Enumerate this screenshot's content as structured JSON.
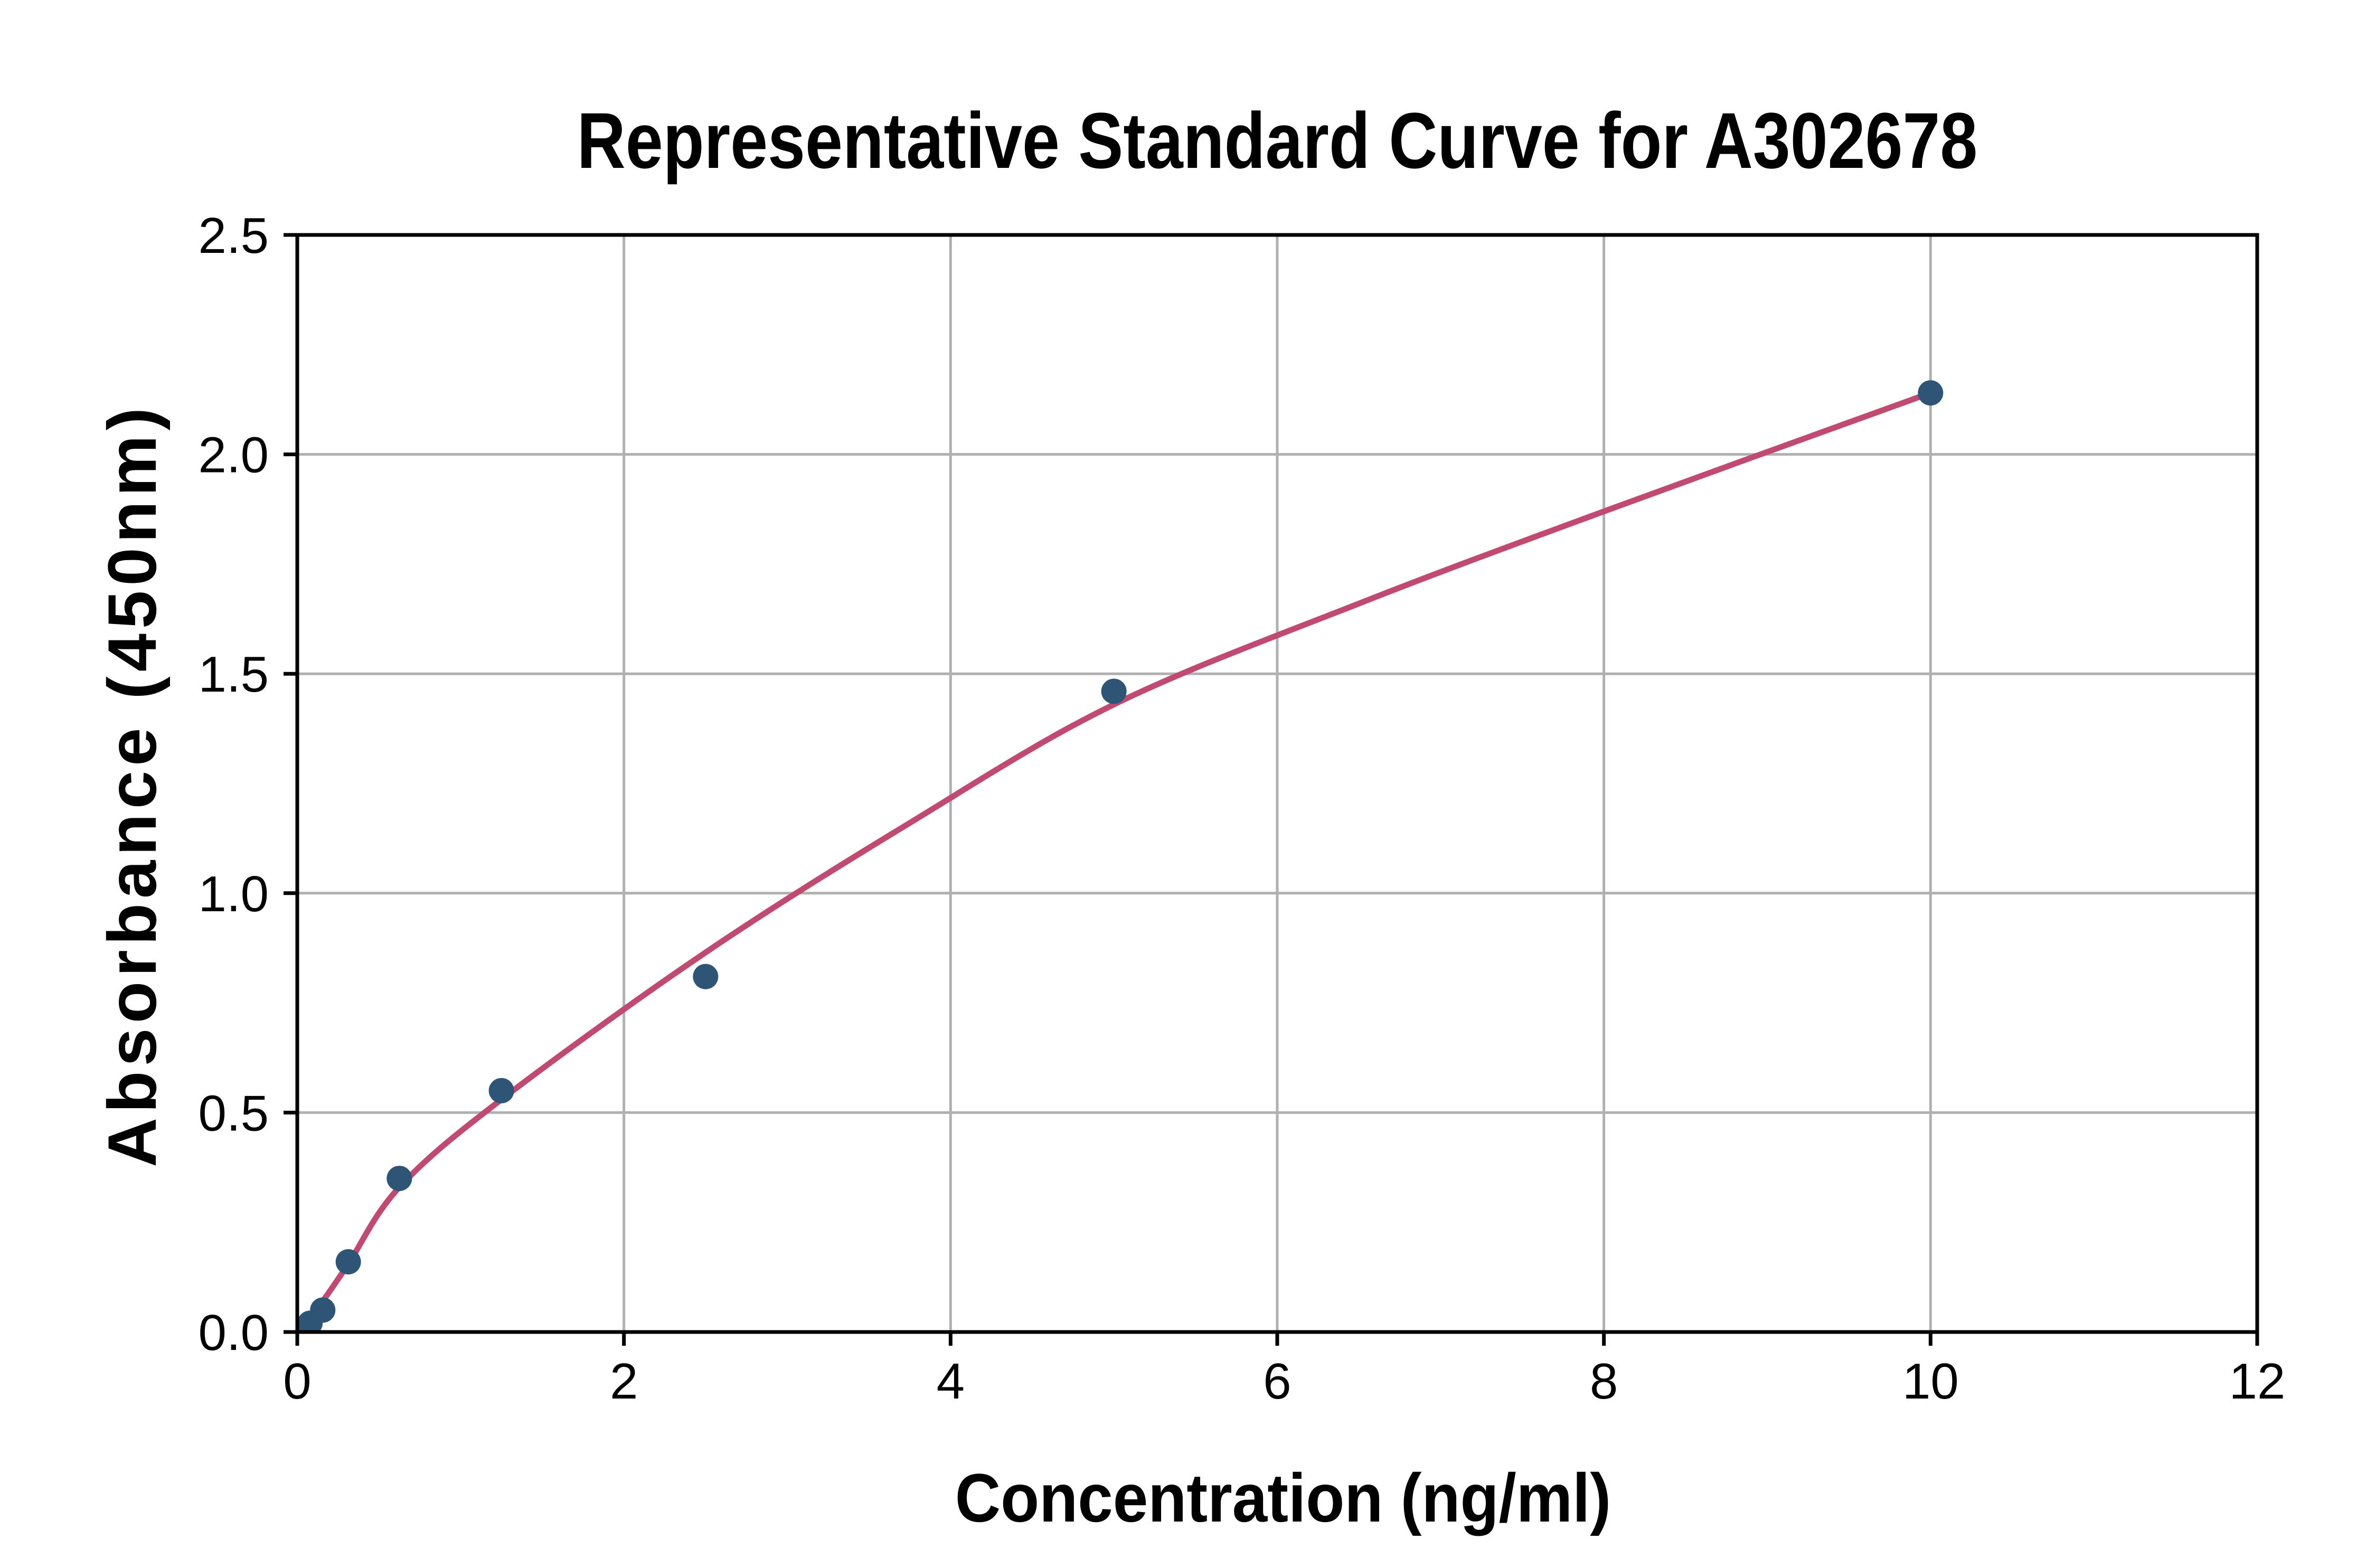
{
  "chart_data": {
    "type": "scatter",
    "title": "Representative Standard Curve for A302678",
    "xlabel": "Concentration (ng/ml)",
    "ylabel": "Absorbance (450nm)",
    "xlim": [
      0,
      12
    ],
    "ylim": [
      0,
      2.5
    ],
    "x_ticks": [
      "0",
      "2",
      "4",
      "6",
      "8",
      "10",
      "12"
    ],
    "x_tick_values": [
      0,
      2,
      4,
      6,
      8,
      10,
      12
    ],
    "y_ticks": [
      "0.0",
      "0.5",
      "1.0",
      "1.5",
      "2.0",
      "2.5"
    ],
    "y_tick_values": [
      0,
      0.5,
      1.0,
      1.5,
      2.0,
      2.5
    ],
    "grid": true,
    "legend_position": "none",
    "series": [
      {
        "name": "standards-scatter",
        "type": "scatter",
        "x": [
          0.078,
          0.156,
          0.3125,
          0.625,
          1.25,
          2.5,
          5,
          10
        ],
        "y": [
          0.02,
          0.05,
          0.16,
          0.35,
          0.55,
          0.81,
          1.46,
          2.14
        ]
      },
      {
        "name": "fitted-curve",
        "type": "line",
        "x": [
          0.02,
          0.156,
          0.3125,
          0.625,
          1.25,
          2.5,
          3.75,
          5,
          6.5,
          8,
          10
        ],
        "y": [
          0.0,
          0.07,
          0.155,
          0.33,
          0.53,
          0.865,
          1.16,
          1.43,
          1.66,
          1.87,
          2.14
        ]
      }
    ],
    "colors": {
      "marker": "#2E5476",
      "curve": "#C04A70",
      "grid": "#B0B0B0",
      "axis": "#000000",
      "background": "#FFFFFF"
    }
  }
}
